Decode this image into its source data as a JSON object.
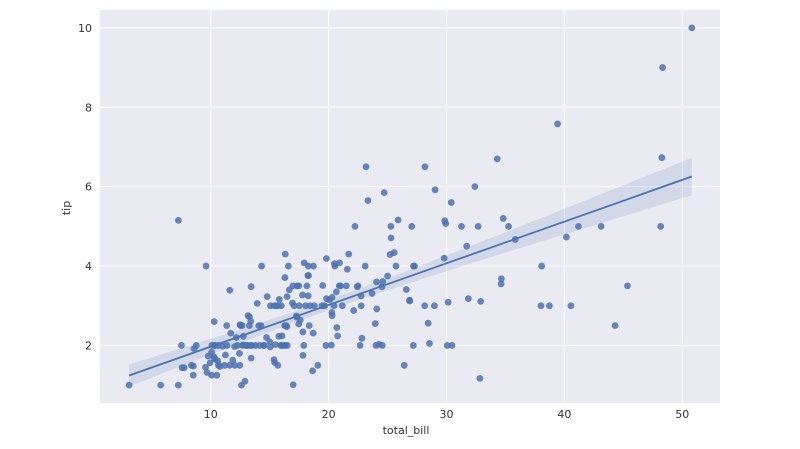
{
  "chart_data": {
    "type": "scatter",
    "xlabel": "total_bill",
    "ylabel": "tip",
    "xlim": [
      0.6,
      53.2
    ],
    "ylim": [
      0.55,
      10.45
    ],
    "xticks": [
      "10",
      "20",
      "30",
      "40",
      "50"
    ],
    "yticks": [
      "2",
      "4",
      "6",
      "8",
      "10"
    ],
    "grid": true,
    "colors": {
      "background": "#eaeaf2",
      "grid": "#ffffff",
      "points": "#4c72b0",
      "line": "#4c72b0",
      "band": "#4c72b0"
    },
    "regression": {
      "slope": 0.105,
      "intercept": 0.92,
      "x_range": [
        3.07,
        50.81
      ]
    },
    "points": [
      [
        3.07,
        1.0
      ],
      [
        5.75,
        1.0
      ],
      [
        7.25,
        1.0
      ],
      [
        7.25,
        5.15
      ],
      [
        7.51,
        2.0
      ],
      [
        7.56,
        1.44
      ],
      [
        7.74,
        1.44
      ],
      [
        8.35,
        1.5
      ],
      [
        8.51,
        1.25
      ],
      [
        8.52,
        1.48
      ],
      [
        8.58,
        1.92
      ],
      [
        8.77,
        2.0
      ],
      [
        9.55,
        1.45
      ],
      [
        9.6,
        4.0
      ],
      [
        9.68,
        1.32
      ],
      [
        9.78,
        1.73
      ],
      [
        9.94,
        1.56
      ],
      [
        10.07,
        1.83
      ],
      [
        10.07,
        1.25
      ],
      [
        10.09,
        2.0
      ],
      [
        10.27,
        1.71
      ],
      [
        10.29,
        2.6
      ],
      [
        10.33,
        1.67
      ],
      [
        10.33,
        2.0
      ],
      [
        10.34,
        1.66
      ],
      [
        10.34,
        2.0
      ],
      [
        10.51,
        1.25
      ],
      [
        10.59,
        1.61
      ],
      [
        10.63,
        2.0
      ],
      [
        10.65,
        1.5
      ],
      [
        10.77,
        1.47
      ],
      [
        11.02,
        1.98
      ],
      [
        11.17,
        1.5
      ],
      [
        11.24,
        1.76
      ],
      [
        11.35,
        2.5
      ],
      [
        11.38,
        2.0
      ],
      [
        11.59,
        1.5
      ],
      [
        11.61,
        3.39
      ],
      [
        11.69,
        2.31
      ],
      [
        11.87,
        1.63
      ],
      [
        12.02,
        1.97
      ],
      [
        12.03,
        1.5
      ],
      [
        12.16,
        2.2
      ],
      [
        12.26,
        2.0
      ],
      [
        12.43,
        1.8
      ],
      [
        12.46,
        1.5
      ],
      [
        12.48,
        2.52
      ],
      [
        12.54,
        2.5
      ],
      [
        12.6,
        1.0
      ],
      [
        12.66,
        2.5
      ],
      [
        12.69,
        2.0
      ],
      [
        12.74,
        2.01
      ],
      [
        12.76,
        2.23
      ],
      [
        12.9,
        1.1
      ],
      [
        13.0,
        2.0
      ],
      [
        13.03,
        2.0
      ],
      [
        13.13,
        2.0
      ],
      [
        13.16,
        2.75
      ],
      [
        13.27,
        2.5
      ],
      [
        13.28,
        2.72
      ],
      [
        13.37,
        2.0
      ],
      [
        13.39,
        2.61
      ],
      [
        13.42,
        3.48
      ],
      [
        13.42,
        1.68
      ],
      [
        13.51,
        2.0
      ],
      [
        13.81,
        2.0
      ],
      [
        13.94,
        3.06
      ],
      [
        14.07,
        2.5
      ],
      [
        14.15,
        2.0
      ],
      [
        14.26,
        2.5
      ],
      [
        14.31,
        4.0
      ],
      [
        14.48,
        2.0
      ],
      [
        14.52,
        2.0
      ],
      [
        14.73,
        2.2
      ],
      [
        14.78,
        3.23
      ],
      [
        15.01,
        2.09
      ],
      [
        15.04,
        1.96
      ],
      [
        15.06,
        3.0
      ],
      [
        15.36,
        1.64
      ],
      [
        15.38,
        3.0
      ],
      [
        15.42,
        1.57
      ],
      [
        15.48,
        2.02
      ],
      [
        15.53,
        3.0
      ],
      [
        15.69,
        3.0
      ],
      [
        15.69,
        1.5
      ],
      [
        15.77,
        2.23
      ],
      [
        15.81,
        3.16
      ],
      [
        15.95,
        2.0
      ],
      [
        15.98,
        3.0
      ],
      [
        16.0,
        2.0
      ],
      [
        16.04,
        2.24
      ],
      [
        16.21,
        2.0
      ],
      [
        16.27,
        2.5
      ],
      [
        16.29,
        3.71
      ],
      [
        16.31,
        2.0
      ],
      [
        16.32,
        4.3
      ],
      [
        16.4,
        2.5
      ],
      [
        16.45,
        2.47
      ],
      [
        16.47,
        3.23
      ],
      [
        16.49,
        2.0
      ],
      [
        16.58,
        4.0
      ],
      [
        16.66,
        3.4
      ],
      [
        16.93,
        3.07
      ],
      [
        16.97,
        3.5
      ],
      [
        16.99,
        1.01
      ],
      [
        17.07,
        3.0
      ],
      [
        17.26,
        2.74
      ],
      [
        17.29,
        2.71
      ],
      [
        17.31,
        3.5
      ],
      [
        17.46,
        2.54
      ],
      [
        17.47,
        3.5
      ],
      [
        17.51,
        3.0
      ],
      [
        17.59,
        2.64
      ],
      [
        17.78,
        3.27
      ],
      [
        17.81,
        2.34
      ],
      [
        17.82,
        1.75
      ],
      [
        17.89,
        2.0
      ],
      [
        17.92,
        4.08
      ],
      [
        18.04,
        3.0
      ],
      [
        18.15,
        3.5
      ],
      [
        18.24,
        3.76
      ],
      [
        18.26,
        3.25
      ],
      [
        18.28,
        4.0
      ],
      [
        18.29,
        3.76
      ],
      [
        18.35,
        2.5
      ],
      [
        18.43,
        3.0
      ],
      [
        18.64,
        1.36
      ],
      [
        18.69,
        2.31
      ],
      [
        18.71,
        4.0
      ],
      [
        18.78,
        3.0
      ],
      [
        19.08,
        1.5
      ],
      [
        19.44,
        3.0
      ],
      [
        19.49,
        3.51
      ],
      [
        19.65,
        3.0
      ],
      [
        19.77,
        2.0
      ],
      [
        19.81,
        4.19
      ],
      [
        19.82,
        3.18
      ],
      [
        20.08,
        3.15
      ],
      [
        20.23,
        2.01
      ],
      [
        20.27,
        2.83
      ],
      [
        20.29,
        3.21
      ],
      [
        20.29,
        2.75
      ],
      [
        20.45,
        3.0
      ],
      [
        20.49,
        4.06
      ],
      [
        20.53,
        4.0
      ],
      [
        20.65,
        3.35
      ],
      [
        20.69,
        2.45
      ],
      [
        20.76,
        2.24
      ],
      [
        20.9,
        3.5
      ],
      [
        20.92,
        4.08
      ],
      [
        21.01,
        3.5
      ],
      [
        21.16,
        3.0
      ],
      [
        21.5,
        3.5
      ],
      [
        21.58,
        3.92
      ],
      [
        21.7,
        4.3
      ],
      [
        22.12,
        2.88
      ],
      [
        22.23,
        5.0
      ],
      [
        22.42,
        3.48
      ],
      [
        22.49,
        3.5
      ],
      [
        22.67,
        2.0
      ],
      [
        22.75,
        3.25
      ],
      [
        22.76,
        3.0
      ],
      [
        22.82,
        2.18
      ],
      [
        23.1,
        4.0
      ],
      [
        23.17,
        6.5
      ],
      [
        23.33,
        5.65
      ],
      [
        23.68,
        3.31
      ],
      [
        23.95,
        2.55
      ],
      [
        24.01,
        2.0
      ],
      [
        24.06,
        3.6
      ],
      [
        24.08,
        2.92
      ],
      [
        24.27,
        2.03
      ],
      [
        24.52,
        3.48
      ],
      [
        24.55,
        2.0
      ],
      [
        24.59,
        3.61
      ],
      [
        24.71,
        5.85
      ],
      [
        25.0,
        3.75
      ],
      [
        25.21,
        4.29
      ],
      [
        25.28,
        5.0
      ],
      [
        25.29,
        4.71
      ],
      [
        25.56,
        4.34
      ],
      [
        25.71,
        4.0
      ],
      [
        25.89,
        5.16
      ],
      [
        26.41,
        1.5
      ],
      [
        26.59,
        3.41
      ],
      [
        26.86,
        3.14
      ],
      [
        26.88,
        3.12
      ],
      [
        27.05,
        5.0
      ],
      [
        27.18,
        2.0
      ],
      [
        27.2,
        4.0
      ],
      [
        27.28,
        4.0
      ],
      [
        28.15,
        3.0
      ],
      [
        28.17,
        6.5
      ],
      [
        28.44,
        2.56
      ],
      [
        28.55,
        2.05
      ],
      [
        28.97,
        3.0
      ],
      [
        29.03,
        5.92
      ],
      [
        29.8,
        4.2
      ],
      [
        29.85,
        5.14
      ],
      [
        29.93,
        5.07
      ],
      [
        30.06,
        2.0
      ],
      [
        30.14,
        3.09
      ],
      [
        30.4,
        5.6
      ],
      [
        30.46,
        2.0
      ],
      [
        31.27,
        5.0
      ],
      [
        31.71,
        4.5
      ],
      [
        31.85,
        3.18
      ],
      [
        32.4,
        6.0
      ],
      [
        32.68,
        5.0
      ],
      [
        32.83,
        1.17
      ],
      [
        32.9,
        3.11
      ],
      [
        34.3,
        6.7
      ],
      [
        34.63,
        3.55
      ],
      [
        34.65,
        3.68
      ],
      [
        34.81,
        5.2
      ],
      [
        35.26,
        5.0
      ],
      [
        35.83,
        4.67
      ],
      [
        38.01,
        3.0
      ],
      [
        38.07,
        4.0
      ],
      [
        38.73,
        3.0
      ],
      [
        39.42,
        7.58
      ],
      [
        40.17,
        4.73
      ],
      [
        40.55,
        3.0
      ],
      [
        41.19,
        5.0
      ],
      [
        43.11,
        5.0
      ],
      [
        44.3,
        2.5
      ],
      [
        45.35,
        3.5
      ],
      [
        48.17,
        5.0
      ],
      [
        48.27,
        6.73
      ],
      [
        48.33,
        9.0
      ],
      [
        50.81,
        10.0
      ]
    ]
  }
}
